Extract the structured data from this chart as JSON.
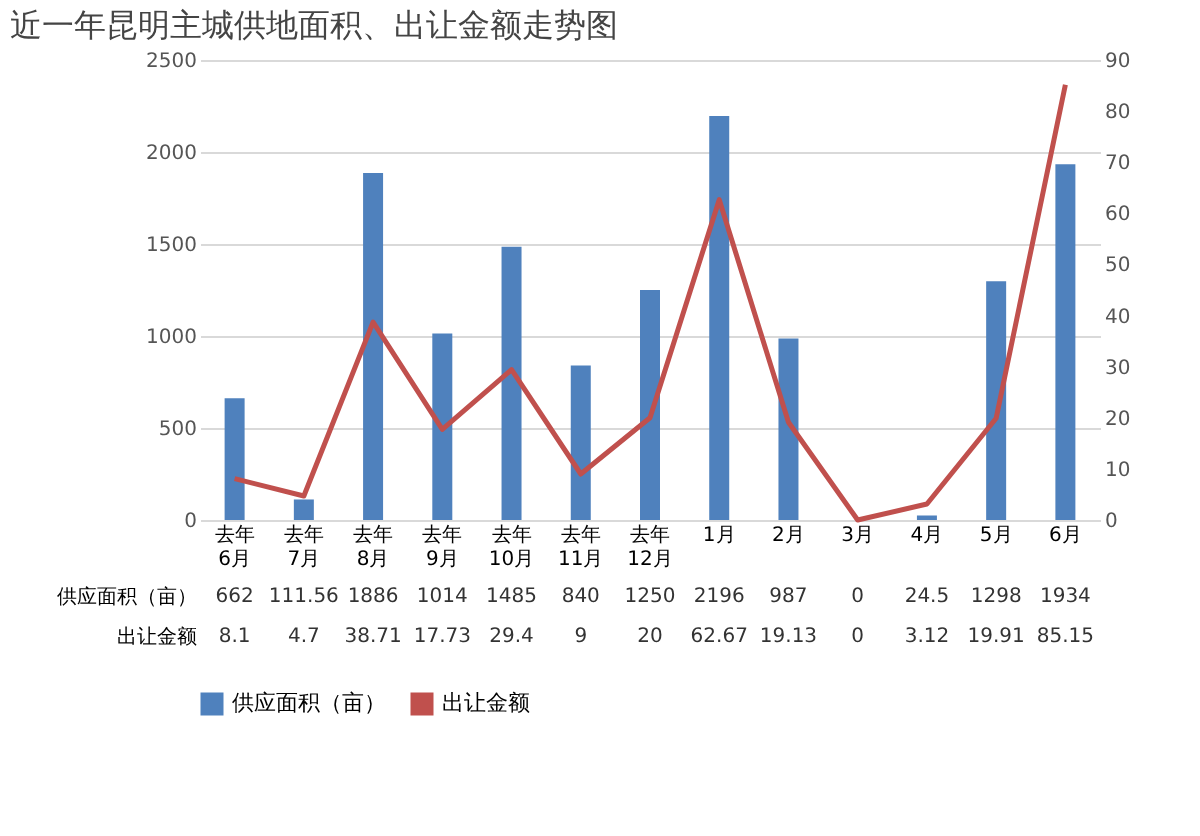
{
  "chart_data": {
    "type": "bar",
    "title": "近一年昆明主城供地面积、出让金额走势图",
    "categories": [
      "去年6月",
      "去年7月",
      "去年8月",
      "去年9月",
      "去年10月",
      "去年11月",
      "去年12月",
      "1月",
      "2月",
      "3月",
      "4月",
      "5月",
      "6月"
    ],
    "series": [
      {
        "name": "供应面积（亩）",
        "color": "#4f81bd",
        "values": [
          662,
          111.56,
          1886,
          1014,
          1485,
          840,
          1250,
          2196,
          987,
          0,
          24.5,
          1298,
          1934
        ]
      },
      {
        "name": "出让金额",
        "type": "line",
        "axis": "y2",
        "color": "#c0504d",
        "values": [
          8.1,
          4.7,
          38.71,
          17.73,
          29.4,
          9,
          20,
          62.67,
          19.13,
          0,
          3.12,
          19.91,
          85.15
        ]
      }
    ],
    "ylim": [
      0,
      2500
    ],
    "yticks": [
      0,
      500,
      1000,
      1500,
      2000,
      2500
    ],
    "y2lim": [
      0,
      90
    ],
    "y2ticks": [
      0,
      10,
      20,
      30,
      40,
      50,
      60,
      70,
      80,
      90
    ],
    "grid": "y",
    "legend": "bottom",
    "data_labels": true
  }
}
